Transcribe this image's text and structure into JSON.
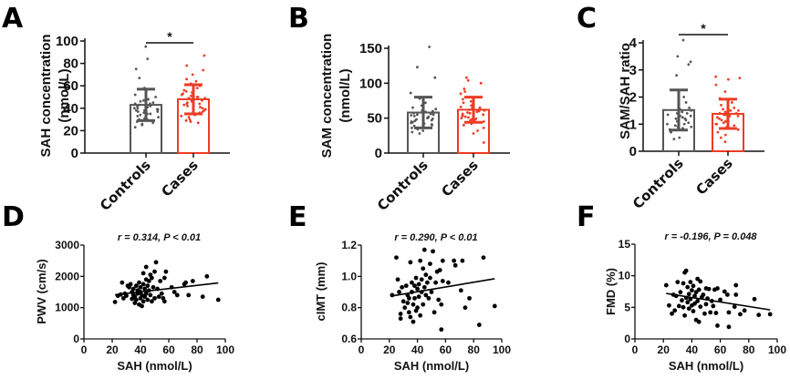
{
  "colors": {
    "controls": "#555555",
    "cases": "#ee3b24",
    "axis": "#111111",
    "point": "#000000"
  },
  "chart_data": [
    {
      "id": "A",
      "type": "bar",
      "panel_label": "A",
      "ylabel_line1": "SAH concentration",
      "ylabel_line2": "(nmol/L)",
      "ylim": [
        0,
        100
      ],
      "yticks": [
        0,
        20,
        40,
        60,
        80,
        100
      ],
      "categories": [
        "Controls",
        "Cases"
      ],
      "means": [
        43,
        48
      ],
      "sd": [
        14,
        13
      ],
      "significance": "*",
      "points": [
        [
          95,
          84,
          75,
          67,
          58,
          55,
          52,
          50,
          48,
          47,
          46,
          45,
          44,
          44,
          43,
          43,
          42,
          42,
          41,
          41,
          40,
          40,
          39,
          39,
          38,
          38,
          37,
          37,
          36,
          35,
          35,
          34,
          33,
          32,
          31,
          30,
          30,
          29,
          28,
          27,
          26,
          25,
          23
        ],
        [
          87,
          78,
          74,
          70,
          66,
          64,
          62,
          60,
          58,
          56,
          55,
          54,
          53,
          52,
          51,
          50,
          50,
          49,
          49,
          48,
          48,
          47,
          47,
          46,
          46,
          45,
          44,
          44,
          43,
          42,
          41,
          40,
          39,
          38,
          37,
          36,
          35,
          34,
          33,
          32,
          30,
          29,
          28,
          27
        ]
      ]
    },
    {
      "id": "B",
      "type": "bar",
      "panel_label": "B",
      "ylabel_line1": "SAM concentration",
      "ylabel_line2": "(nmol/L)",
      "ylim": [
        0,
        150
      ],
      "yticks": [
        0,
        50,
        100,
        150
      ],
      "categories": [
        "Controls",
        "Cases"
      ],
      "means": [
        58,
        62
      ],
      "sd": [
        22,
        18
      ],
      "significance": "",
      "points": [
        [
          152,
          123,
          108,
          86,
          78,
          72,
          68,
          65,
          63,
          61,
          60,
          59,
          58,
          57,
          56,
          55,
          55,
          54,
          53,
          52,
          51,
          50,
          49,
          48,
          47,
          46,
          45,
          44,
          43,
          42,
          41,
          40,
          39,
          38,
          36,
          34,
          32,
          30,
          28
        ],
        [
          108,
          104,
          100,
          92,
          88,
          85,
          80,
          77,
          74,
          72,
          70,
          68,
          66,
          65,
          64,
          63,
          62,
          61,
          60,
          59,
          58,
          57,
          56,
          55,
          54,
          53,
          52,
          51,
          50,
          49,
          48,
          47,
          46,
          45,
          44,
          42,
          40,
          36,
          32,
          28,
          15
        ]
      ]
    },
    {
      "id": "C",
      "type": "bar",
      "panel_label": "C",
      "ylabel_line1": "SAM/SAH ratio",
      "ylabel_line2": "",
      "ylim": [
        0,
        4
      ],
      "yticks": [
        0,
        1,
        2,
        3,
        4
      ],
      "categories": [
        "Controls",
        "Cases"
      ],
      "means": [
        1.52,
        1.38
      ],
      "sd": [
        0.74,
        0.54
      ],
      "significance": "*",
      "points": [
        [
          4.1,
          3.5,
          3.3,
          3.2,
          2.8,
          2.2,
          2.0,
          1.8,
          1.6,
          1.55,
          1.5,
          1.45,
          1.4,
          1.4,
          1.35,
          1.3,
          1.3,
          1.25,
          1.2,
          1.2,
          1.15,
          1.1,
          1.1,
          1.05,
          1.0,
          1.0,
          0.95,
          0.9,
          0.9,
          0.85,
          0.8,
          0.8,
          0.75,
          0.7,
          0.5,
          0.45
        ],
        [
          2.75,
          2.7,
          2.65,
          2.45,
          2.2,
          1.95,
          1.8,
          1.7,
          1.6,
          1.55,
          1.5,
          1.5,
          1.45,
          1.4,
          1.4,
          1.35,
          1.35,
          1.3,
          1.3,
          1.25,
          1.2,
          1.2,
          1.15,
          1.1,
          1.1,
          1.05,
          1.0,
          1.0,
          0.95,
          0.9,
          0.85,
          0.8,
          0.7,
          0.6,
          0.5,
          0.35
        ]
      ]
    },
    {
      "id": "D",
      "type": "scatter",
      "panel_label": "D",
      "annotation": "r = 0.314, P < 0.01",
      "xlabel": "SAH (nmol/L)",
      "ylabel": "PWV (cm/s)",
      "xlim": [
        0,
        100
      ],
      "xticks": [
        0,
        20,
        40,
        60,
        80,
        100
      ],
      "ylim": [
        0,
        3000
      ],
      "yticks": [
        0,
        1000,
        2000,
        3000
      ],
      "fit": {
        "x": [
          22,
          95
        ],
        "y": [
          1410,
          1790
        ]
      },
      "points": [
        [
          22,
          1180
        ],
        [
          24,
          1380
        ],
        [
          26,
          1420
        ],
        [
          27,
          1800
        ],
        [
          28,
          1300
        ],
        [
          29,
          1450
        ],
        [
          30,
          1380
        ],
        [
          31,
          1700
        ],
        [
          32,
          1650
        ],
        [
          33,
          1750
        ],
        [
          34,
          1280
        ],
        [
          34,
          1500
        ],
        [
          35,
          1400
        ],
        [
          35,
          1600
        ],
        [
          36,
          1150
        ],
        [
          36,
          1350
        ],
        [
          37,
          1700
        ],
        [
          37,
          1250
        ],
        [
          38,
          1450
        ],
        [
          38,
          1550
        ],
        [
          39,
          1100
        ],
        [
          39,
          1800
        ],
        [
          40,
          1300
        ],
        [
          40,
          1500
        ],
        [
          40,
          1650
        ],
        [
          41,
          1050
        ],
        [
          41,
          1400
        ],
        [
          42,
          1200
        ],
        [
          42,
          1750
        ],
        [
          42,
          2100
        ],
        [
          43,
          1350
        ],
        [
          43,
          1600
        ],
        [
          44,
          1450
        ],
        [
          44,
          1900
        ],
        [
          44,
          2300
        ],
        [
          45,
          1250
        ],
        [
          45,
          1700
        ],
        [
          46,
          1550
        ],
        [
          46,
          1850
        ],
        [
          47,
          1400
        ],
        [
          47,
          2050
        ],
        [
          48,
          1200
        ],
        [
          48,
          1950
        ],
        [
          49,
          1650
        ],
        [
          50,
          1300
        ],
        [
          50,
          2150
        ],
        [
          51,
          2450
        ],
        [
          52,
          1600
        ],
        [
          53,
          1350
        ],
        [
          54,
          1850
        ],
        [
          55,
          1450
        ],
        [
          56,
          1300
        ],
        [
          57,
          1200
        ],
        [
          57,
          1950
        ],
        [
          58,
          2150
        ],
        [
          62,
          1650
        ],
        [
          64,
          1500
        ],
        [
          66,
          1400
        ],
        [
          71,
          1750
        ],
        [
          72,
          1800
        ],
        [
          74,
          1400
        ],
        [
          77,
          1850
        ],
        [
          84,
          1350
        ],
        [
          87,
          2000
        ],
        [
          95,
          1250
        ]
      ]
    },
    {
      "id": "E",
      "type": "scatter",
      "panel_label": "E",
      "annotation": "r = 0.290, P < 0.01",
      "xlabel": "SAH (nmol/L)",
      "ylabel": "cIMT (mm)",
      "xlim": [
        0,
        100
      ],
      "xticks": [
        0,
        20,
        40,
        60,
        80,
        100
      ],
      "ylim": [
        0.6,
        1.2
      ],
      "yticks": [
        0.6,
        0.8,
        1.0,
        1.2
      ],
      "fit": {
        "x": [
          22,
          95
        ],
        "y": [
          0.875,
          0.985
        ]
      },
      "points": [
        [
          22,
          0.88
        ],
        [
          25,
          1.12
        ],
        [
          26,
          0.98
        ],
        [
          27,
          0.9
        ],
        [
          28,
          0.73
        ],
        [
          28,
          0.76
        ],
        [
          29,
          0.93
        ],
        [
          30,
          0.84
        ],
        [
          31,
          0.8
        ],
        [
          32,
          0.94
        ],
        [
          33,
          0.83
        ],
        [
          33,
          0.88
        ],
        [
          34,
          0.77
        ],
        [
          34,
          0.86
        ],
        [
          35,
          1.09
        ],
        [
          35,
          0.74
        ],
        [
          36,
          0.96
        ],
        [
          36,
          0.9
        ],
        [
          37,
          0.71
        ],
        [
          37,
          0.82
        ],
        [
          38,
          0.94
        ],
        [
          38,
          0.86
        ],
        [
          39,
          0.78
        ],
        [
          39,
          0.99
        ],
        [
          40,
          0.92
        ],
        [
          40,
          0.8
        ],
        [
          41,
          0.95
        ],
        [
          41,
          0.87
        ],
        [
          42,
          1.1
        ],
        [
          42,
          0.75
        ],
        [
          43,
          0.98
        ],
        [
          43,
          0.9
        ],
        [
          44,
          1.05
        ],
        [
          44,
          0.82
        ],
        [
          45,
          1.17
        ],
        [
          45,
          0.93
        ],
        [
          46,
          1.01
        ],
        [
          46,
          0.88
        ],
        [
          47,
          0.96
        ],
        [
          48,
          0.86
        ],
        [
          49,
          1.08
        ],
        [
          49,
          0.99
        ],
        [
          50,
          0.9
        ],
        [
          51,
          1.16
        ],
        [
          52,
          0.77
        ],
        [
          53,
          0.96
        ],
        [
          54,
          1.03
        ],
        [
          55,
          0.85
        ],
        [
          56,
          1.04
        ],
        [
          57,
          0.66
        ],
        [
          57,
          0.82
        ],
        [
          58,
          1.1
        ],
        [
          58,
          0.97
        ],
        [
          62,
          0.96
        ],
        [
          66,
          1.1
        ],
        [
          67,
          1.07
        ],
        [
          71,
          0.91
        ],
        [
          72,
          1.1
        ],
        [
          74,
          0.8
        ],
        [
          77,
          0.86
        ],
        [
          84,
          0.69
        ],
        [
          87,
          1.12
        ],
        [
          95,
          0.81
        ]
      ]
    },
    {
      "id": "F",
      "type": "scatter",
      "panel_label": "F",
      "annotation": "r = -0.196, P = 0.048",
      "xlabel": "SAH (nmol/L)",
      "ylabel": "FMD (%)",
      "xlim": [
        0,
        100
      ],
      "xticks": [
        0,
        20,
        40,
        60,
        80,
        100
      ],
      "ylim": [
        0,
        15
      ],
      "yticks": [
        0,
        5,
        10,
        15
      ],
      "fit": {
        "x": [
          22,
          95
        ],
        "y": [
          7.2,
          4.6
        ]
      },
      "points": [
        [
          22,
          8.5
        ],
        [
          24,
          5.3
        ],
        [
          26,
          4.0
        ],
        [
          27,
          7.0
        ],
        [
          28,
          4.5
        ],
        [
          29,
          6.8
        ],
        [
          30,
          9.0
        ],
        [
          31,
          5.2
        ],
        [
          32,
          7.4
        ],
        [
          33,
          6.1
        ],
        [
          34,
          8.8
        ],
        [
          34,
          5.0
        ],
        [
          35,
          10.5
        ],
        [
          35,
          3.7
        ],
        [
          36,
          10.8
        ],
        [
          36,
          6.5
        ],
        [
          37,
          8.2
        ],
        [
          37,
          5.8
        ],
        [
          38,
          7.1
        ],
        [
          38,
          4.8
        ],
        [
          39,
          6.3
        ],
        [
          39,
          9.0
        ],
        [
          40,
          5.3
        ],
        [
          40,
          7.7
        ],
        [
          41,
          4.4
        ],
        [
          41,
          8.4
        ],
        [
          42,
          6.8
        ],
        [
          42,
          5.6
        ],
        [
          43,
          7.4
        ],
        [
          43,
          3.0
        ],
        [
          44,
          9.5
        ],
        [
          44,
          6.0
        ],
        [
          45,
          2.7
        ],
        [
          45,
          7.8
        ],
        [
          46,
          5.1
        ],
        [
          46,
          9.1
        ],
        [
          47,
          6.6
        ],
        [
          48,
          7.0
        ],
        [
          49,
          4.0
        ],
        [
          50,
          8.0
        ],
        [
          50,
          5.5
        ],
        [
          51,
          6.4
        ],
        [
          52,
          7.9
        ],
        [
          53,
          4.2
        ],
        [
          54,
          6.0
        ],
        [
          55,
          5.2
        ],
        [
          56,
          7.8
        ],
        [
          57,
          4.1
        ],
        [
          58,
          2.1
        ],
        [
          58,
          8.0
        ],
        [
          60,
          6.2
        ],
        [
          63,
          7.5
        ],
        [
          65,
          7.0
        ],
        [
          66,
          1.9
        ],
        [
          66,
          4.2
        ],
        [
          70,
          5.1
        ],
        [
          71,
          8.5
        ],
        [
          71,
          7.0
        ],
        [
          74,
          3.9
        ],
        [
          77,
          4.5
        ],
        [
          84,
          6.3
        ],
        [
          87,
          3.8
        ],
        [
          95,
          3.9
        ]
      ]
    }
  ]
}
